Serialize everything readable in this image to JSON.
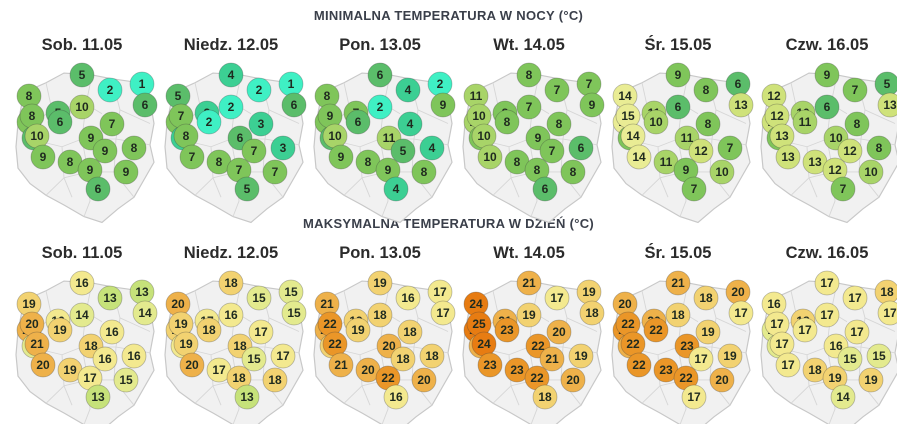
{
  "sections": [
    {
      "id": "min",
      "title": "MINIMALNA TEMPERATURA W NOCY (°C)",
      "days": [
        {
          "label": "Sob. 11.05",
          "values": [
            8,
            5,
            1,
            2,
            8,
            5,
            10,
            6,
            5,
            8,
            6,
            7,
            10,
            9,
            8,
            9,
            8,
            9,
            9,
            9,
            6
          ]
        },
        {
          "label": "Niedz. 12.05",
          "values": [
            5,
            4,
            1,
            2,
            7,
            3,
            2,
            6,
            3,
            7,
            2,
            3,
            8,
            6,
            3,
            7,
            8,
            7,
            7,
            7,
            5
          ]
        },
        {
          "label": "Pon. 13.05",
          "values": [
            8,
            6,
            2,
            4,
            9,
            7,
            2,
            9,
            6,
            9,
            6,
            4,
            10,
            11,
            4,
            9,
            8,
            5,
            9,
            8,
            4
          ]
        },
        {
          "label": "Wt. 14.05",
          "values": [
            11,
            8,
            7,
            7,
            10,
            8,
            7,
            9,
            7,
            10,
            8,
            8,
            10,
            9,
            6,
            10,
            8,
            7,
            8,
            8,
            6
          ]
        },
        {
          "label": "Śr. 15.05",
          "values": [
            14,
            9,
            6,
            8,
            15,
            11,
            6,
            13,
            8,
            15,
            10,
            8,
            14,
            11,
            7,
            14,
            11,
            12,
            9,
            10,
            7
          ]
        },
        {
          "label": "Czw. 16.05",
          "values": [
            12,
            9,
            5,
            7,
            12,
            10,
            6,
            13,
            9,
            12,
            11,
            8,
            13,
            10,
            8,
            13,
            13,
            12,
            12,
            10,
            7
          ]
        }
      ]
    },
    {
      "id": "max",
      "title": "MAKSYMALNA TEMPERATURA W DZIEŃ (°C)",
      "days": [
        {
          "label": "Sob. 11.05",
          "values": [
            19,
            16,
            13,
            13,
            20,
            16,
            14,
            14,
            15,
            20,
            19,
            16,
            21,
            18,
            16,
            20,
            19,
            16,
            17,
            15,
            13
          ]
        },
        {
          "label": "Niedz. 12.05",
          "values": [
            20,
            18,
            15,
            15,
            19,
            17,
            16,
            15,
            17,
            19,
            18,
            17,
            19,
            18,
            17,
            20,
            17,
            15,
            18,
            18,
            13
          ]
        },
        {
          "label": "Pon. 13.05",
          "values": [
            21,
            19,
            17,
            16,
            21,
            19,
            18,
            17,
            18,
            22,
            19,
            18,
            22,
            20,
            18,
            21,
            20,
            18,
            22,
            20,
            16
          ]
        },
        {
          "label": "Wt. 14.05",
          "values": [
            24,
            21,
            19,
            17,
            24,
            21,
            19,
            18,
            20,
            25,
            23,
            20,
            24,
            22,
            19,
            23,
            23,
            21,
            22,
            20,
            18
          ]
        },
        {
          "label": "Śr. 15.05",
          "values": [
            20,
            21,
            20,
            18,
            22,
            20,
            18,
            17,
            20,
            22,
            22,
            19,
            22,
            23,
            19,
            22,
            23,
            17,
            22,
            20,
            17
          ]
        },
        {
          "label": "Czw. 16.05",
          "values": [
            16,
            17,
            18,
            17,
            15,
            18,
            17,
            17,
            15,
            17,
            17,
            17,
            17,
            16,
            15,
            17,
            18,
            15,
            19,
            19,
            14
          ]
        }
      ]
    }
  ],
  "colors": {
    "min_scale": [
      "#3ff0c4",
      "#3ccf93",
      "#5bbd6a",
      "#7fc55a",
      "#a8d468",
      "#cfe27a",
      "#e9ec94"
    ],
    "max_scale": [
      "#c6e27a",
      "#e3ea8e",
      "#f3e98f",
      "#f2d271",
      "#eeb14a",
      "#ea9628",
      "#e77c12"
    ],
    "map_fill": "#f1f1f1",
    "map_border": "#c8c8c8"
  }
}
